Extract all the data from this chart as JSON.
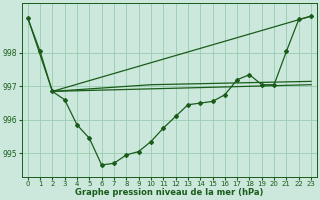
{
  "title": "Graphe pression niveau de la mer (hPa)",
  "background_color": "#cce8dc",
  "grid_color": "#99ccb3",
  "line_color": "#1a5c1a",
  "text_color": "#1a5c1a",
  "ylim": [
    994.3,
    999.5
  ],
  "xlim": [
    -0.5,
    23.5
  ],
  "yticks": [
    995,
    996,
    997,
    998
  ],
  "xticks": [
    0,
    1,
    2,
    3,
    4,
    5,
    6,
    7,
    8,
    9,
    10,
    11,
    12,
    13,
    14,
    15,
    16,
    17,
    18,
    19,
    20,
    21,
    22,
    23
  ],
  "series1_x": [
    0,
    1,
    2,
    3,
    4,
    5,
    6,
    7,
    8,
    9,
    10,
    11,
    12,
    13,
    14,
    15,
    16,
    17,
    18,
    19,
    20,
    21,
    22,
    23
  ],
  "series1_y": [
    999.05,
    998.05,
    996.85,
    996.6,
    995.85,
    995.45,
    994.65,
    994.7,
    994.95,
    995.05,
    995.35,
    995.75,
    996.1,
    996.45,
    996.5,
    996.55,
    996.75,
    997.2,
    997.35,
    997.05,
    997.05,
    998.05,
    999.0,
    999.1
  ],
  "series2_x": [
    0,
    2,
    23
  ],
  "series2_y": [
    999.05,
    996.85,
    999.1
  ],
  "series3_x": [
    2,
    10,
    23
  ],
  "series3_y": [
    996.85,
    997.05,
    997.15
  ],
  "series4_x": [
    2,
    23
  ],
  "series4_y": [
    996.85,
    997.05
  ]
}
